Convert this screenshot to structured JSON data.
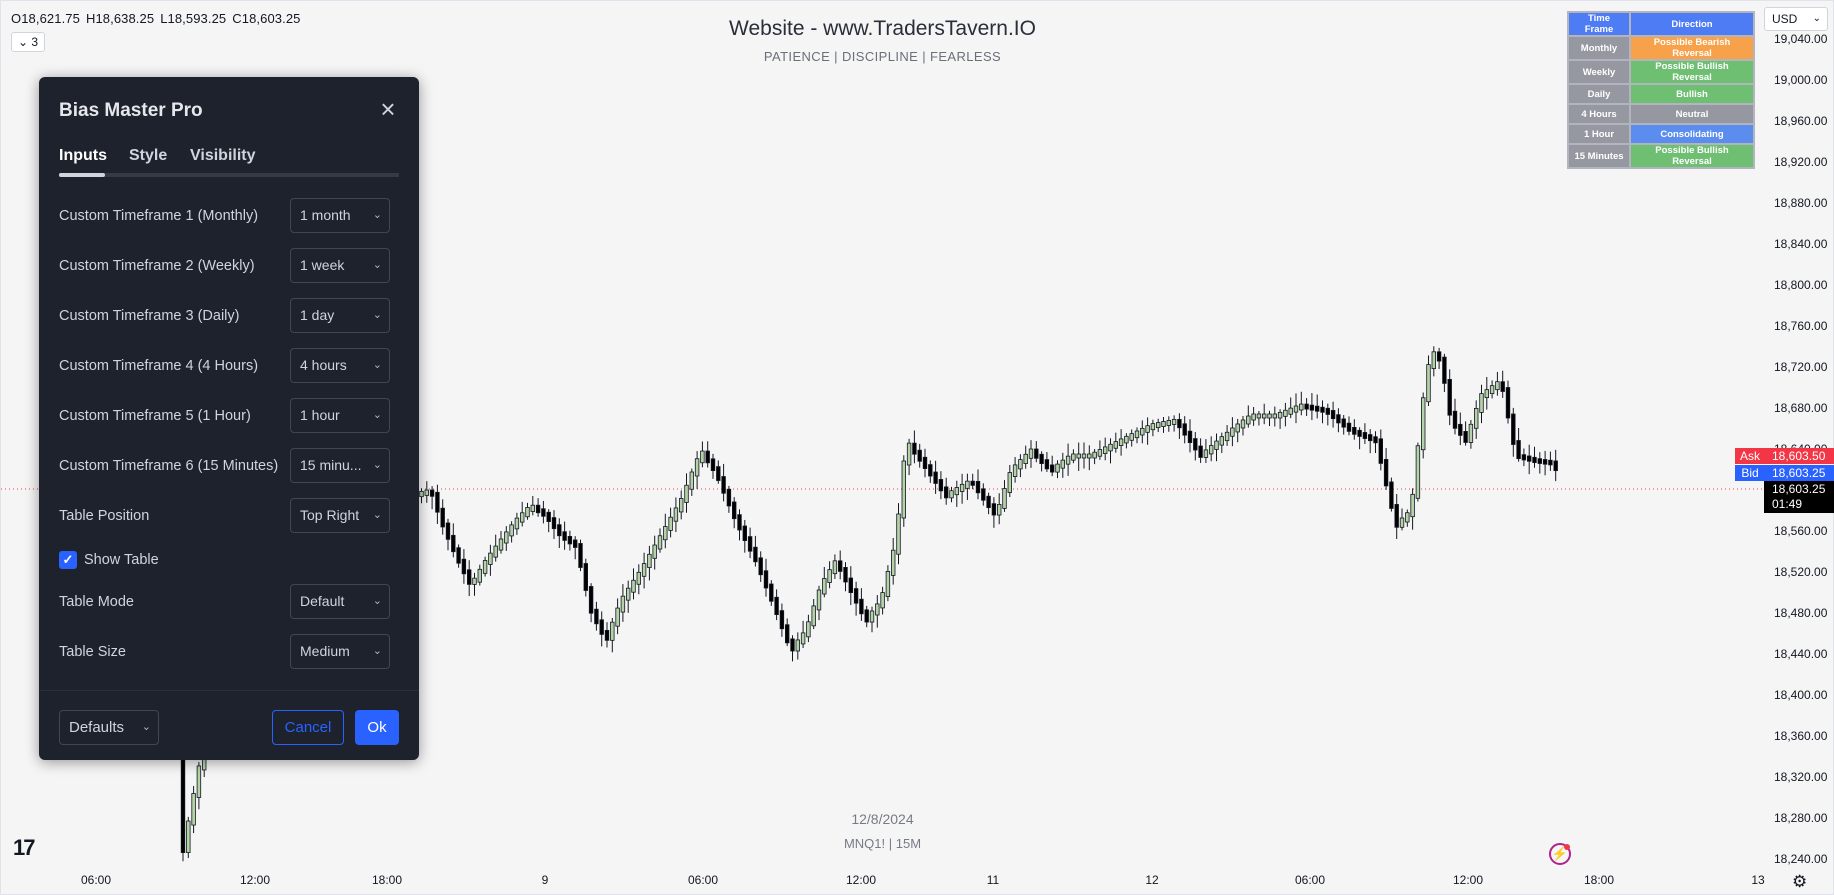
{
  "ohlc": {
    "open": "O18,621.75",
    "high": "H18,638.25",
    "low": "L18,593.25",
    "close": "C18,603.25"
  },
  "indicator_toggle": {
    "chevron": "⌄",
    "count": "3"
  },
  "header": {
    "title": "Website - www.TradersTavern.IO",
    "subtitle": "PATIENCE   |   DISCIPLINE   |   FEARLESS"
  },
  "footer": {
    "date": "12/8/2024",
    "symbol": "MNQ1!  |  15M"
  },
  "currency": {
    "value": "USD",
    "chevron": "⌄"
  },
  "price_axis": {
    "ticks": [
      "19,040.00",
      "19,000.00",
      "18,960.00",
      "18,920.00",
      "18,880.00",
      "18,840.00",
      "18,800.00",
      "18,760.00",
      "18,720.00",
      "18,680.00",
      "18,640.00",
      "18,600.00",
      "18,560.00",
      "18,520.00",
      "18,480.00",
      "18,440.00",
      "18,400.00",
      "18,360.00",
      "18,320.00",
      "18,280.00",
      "18,240.00"
    ],
    "ask_label": "Ask",
    "ask_value": "18,603.50",
    "bid_label": "Bid",
    "bid_value": "18,603.25",
    "last_value": "18,603.25",
    "countdown": "01:49"
  },
  "time_axis": {
    "ticks": [
      "06:00",
      "12:00",
      "18:00",
      "9",
      "06:00",
      "12:00",
      "11",
      "12",
      "06:00",
      "12:00",
      "18:00",
      "13"
    ]
  },
  "bias_table": {
    "header": {
      "timeframe": "Time Frame",
      "direction": "Direction"
    },
    "rows": [
      {
        "timeframe": "Monthly",
        "direction": "Possible Bearish Reversal",
        "color": "#f7a14b"
      },
      {
        "timeframe": "Weekly",
        "direction": "Possible Bullish Reversal",
        "color": "#6fbf73"
      },
      {
        "timeframe": "Daily",
        "direction": "Bullish",
        "color": "#6fbf73"
      },
      {
        "timeframe": "4 Hours",
        "direction": "Neutral",
        "color": "#9598a1"
      },
      {
        "timeframe": "1 Hour",
        "direction": "Consolidating",
        "color": "#5b8def"
      },
      {
        "timeframe": "15 Minutes",
        "direction": "Possible Bullish Reversal",
        "color": "#6fbf73"
      }
    ]
  },
  "dialog": {
    "title": "Bias Master Pro",
    "close_icon": "×",
    "tabs": [
      "Inputs",
      "Style",
      "Visibility"
    ],
    "inputs": [
      {
        "label": "Custom Timeframe 1 (Monthly)",
        "value": "1 month"
      },
      {
        "label": "Custom Timeframe 2 (Weekly)",
        "value": "1 week"
      },
      {
        "label": "Custom Timeframe 3 (Daily)",
        "value": "1 day"
      },
      {
        "label": "Custom Timeframe 4 (4 Hours)",
        "value": "4 hours"
      },
      {
        "label": "Custom Timeframe 5 (1 Hour)",
        "value": "1 hour"
      },
      {
        "label": "Custom Timeframe 6 (15 Minutes)",
        "value": "15 minu..."
      },
      {
        "label": "Table Position",
        "value": "Top Right"
      }
    ],
    "show_table": {
      "label": "Show Table",
      "checked": true,
      "check_glyph": "✓"
    },
    "table_mode": {
      "label": "Table Mode",
      "value": "Default"
    },
    "table_size": {
      "label": "Table Size",
      "value": "Medium"
    },
    "defaults_label": "Defaults",
    "cancel_label": "Cancel",
    "ok_label": "Ok",
    "chevron": "⌄"
  },
  "icons": {
    "logo": "17",
    "bolt": "⚡",
    "gear": "⚙"
  },
  "colors": {
    "bull": "#b4d4a8",
    "bear": "#000000",
    "wick": "#131722",
    "price_line": "#f23645"
  }
}
